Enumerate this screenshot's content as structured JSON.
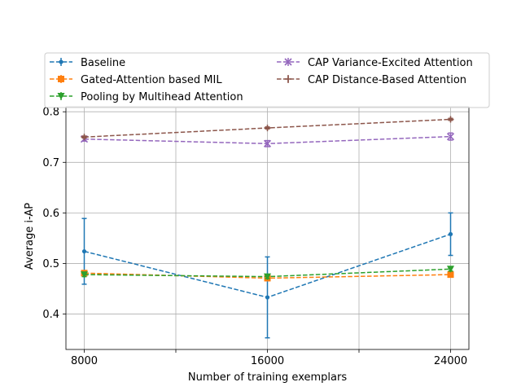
{
  "chart_data": {
    "type": "line",
    "title": "",
    "xlabel": "Number of training exemplars",
    "ylabel": "Average i-AP",
    "x": [
      8000,
      16000,
      24000
    ],
    "xlim": [
      7200,
      24800
    ],
    "ylim": [
      0.33,
      0.81
    ],
    "x_ticks": [
      8000,
      12000,
      16000,
      20000,
      24000
    ],
    "x_tick_labels": [
      "8000",
      "",
      "16000",
      "",
      "24000"
    ],
    "y_ticks": [
      0.4,
      0.5,
      0.6,
      0.7,
      0.8
    ],
    "y_tick_labels": [
      "0.4",
      "0.5",
      "0.6",
      "0.7",
      "0.8"
    ],
    "grid": true,
    "legend_position": "top",
    "series": [
      {
        "name": "Baseline",
        "color": "#1f77b4",
        "marker": "point",
        "values": [
          0.524,
          0.433,
          0.558
        ],
        "errors": [
          0.065,
          0.08,
          0.042
        ]
      },
      {
        "name": "Gated-Attention based MIL",
        "color": "#ff7f0e",
        "marker": "square",
        "values": [
          0.481,
          0.471,
          0.478
        ],
        "errors": [
          0.004,
          0.005,
          0.003
        ]
      },
      {
        "name": "Pooling by Multihead Attention",
        "color": "#2ca02c",
        "marker": "triangle-down",
        "values": [
          0.478,
          0.474,
          0.489
        ],
        "errors": [
          0.004,
          0.004,
          0.004
        ]
      },
      {
        "name": "CAP Variance-Excited Attention",
        "color": "#9467bd",
        "marker": "x",
        "values": [
          0.746,
          0.737,
          0.751
        ],
        "errors": [
          0.004,
          0.006,
          0.007
        ]
      },
      {
        "name": "CAP Distance-Based Attention",
        "color": "#8c564b",
        "marker": "plus",
        "values": [
          0.75,
          0.768,
          0.785
        ],
        "errors": [
          0.002,
          0.002,
          0.002
        ]
      }
    ]
  }
}
